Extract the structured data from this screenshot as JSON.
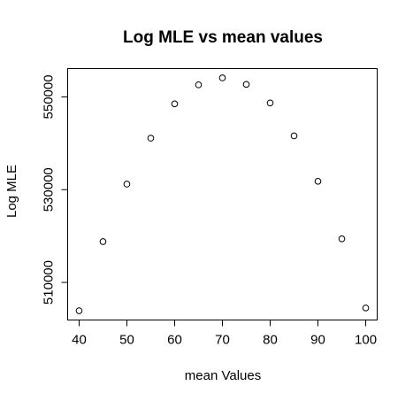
{
  "chart_data": {
    "type": "scatter",
    "title": "Log MLE vs mean values",
    "xlabel": "mean Values",
    "ylabel": "Log MLE",
    "x": [
      40,
      45,
      50,
      55,
      60,
      65,
      70,
      75,
      80,
      85,
      90,
      95,
      100
    ],
    "y": [
      503900,
      518800,
      531200,
      541100,
      548500,
      552600,
      554100,
      552700,
      548700,
      541600,
      531800,
      519400,
      504500
    ],
    "x_ticks": [
      40,
      50,
      60,
      70,
      80,
      90,
      100
    ],
    "y_ticks": [
      510000,
      530000,
      550000
    ],
    "xlim": [
      37.6,
      102.4
    ],
    "ylim": [
      501900,
      556100
    ],
    "grid": false,
    "legend": "none",
    "marker": "open-circle",
    "colors": {
      "marker": "#000000",
      "axis": "#000000",
      "background": "#ffffff"
    }
  }
}
